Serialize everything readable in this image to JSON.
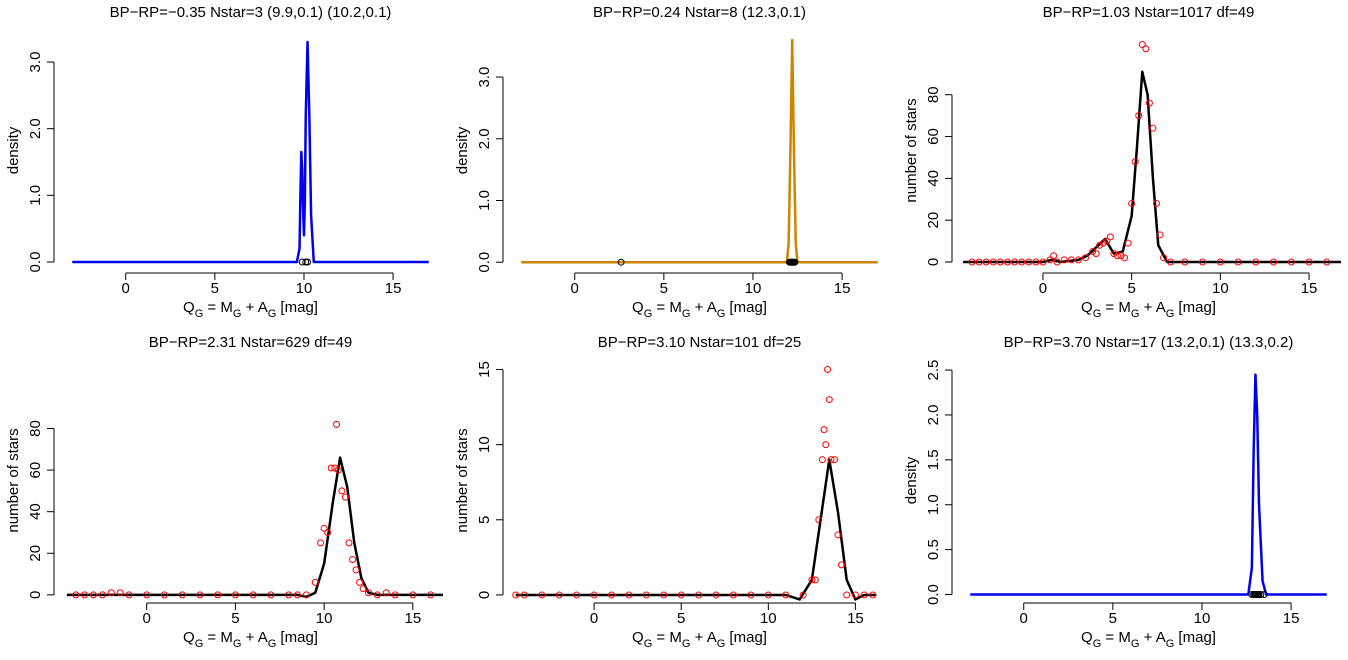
{
  "chart_data": [
    {
      "type": "line",
      "title": "BP−RP=−0.35 Nstar=3 (9.9,0.1) (10.2,0.1)",
      "ylabel": "density",
      "xlabel": {
        "parts": [
          "Q",
          " = M",
          " + A",
          " [mag]"
        ],
        "subs": [
          "G",
          "G",
          "G"
        ]
      },
      "xlim": [
        -3.8,
        17.8
      ],
      "ylim": [
        -0.105,
        3.45
      ],
      "xticks": [
        0,
        5,
        10,
        15
      ],
      "yticks": [
        {
          "value": 0,
          "label": "0.0"
        },
        {
          "value": 1,
          "label": "1.0"
        },
        {
          "value": 2,
          "label": "2.0"
        },
        {
          "value": 3,
          "label": "3.0"
        }
      ],
      "curve": {
        "color": "#0000ee",
        "x": [
          -3,
          9.6,
          9.75,
          9.8,
          9.85,
          9.9,
          9.95,
          10.0,
          10.05,
          10.1,
          10.2,
          10.3,
          10.4,
          10.55,
          17
        ],
        "values": [
          0,
          0,
          0.2,
          1.0,
          1.65,
          1.4,
          0.8,
          0.4,
          0.9,
          2.2,
          3.3,
          2.2,
          0.7,
          0,
          0
        ]
      },
      "points": {
        "color": "#000000",
        "x": [
          9.9,
          10.1,
          10.2
        ],
        "values": [
          0,
          0,
          0
        ]
      }
    },
    {
      "type": "line",
      "title": "BP−RP=0.24 Nstar=8 (12.3,0.1)",
      "ylabel": "density",
      "xlabel": {
        "parts": [
          "Q",
          " = M",
          " + A",
          " [mag]"
        ],
        "subs": [
          "G",
          "G",
          "G"
        ]
      },
      "xlim": [
        -3.8,
        17.8
      ],
      "ylim": [
        -0.11,
        3.73
      ],
      "xticks": [
        0,
        5,
        10,
        15
      ],
      "yticks": [
        {
          "value": 0,
          "label": "0.0"
        },
        {
          "value": 1,
          "label": "1.0"
        },
        {
          "value": 2,
          "label": "2.0"
        },
        {
          "value": 3,
          "label": "3.0"
        }
      ],
      "curve": {
        "color": "#cd8500",
        "x": [
          -3,
          11.9,
          12.0,
          12.1,
          12.2,
          12.3,
          12.4,
          12.5,
          17
        ],
        "values": [
          0,
          0,
          0.3,
          1.8,
          3.6,
          1.8,
          0.3,
          0,
          0
        ]
      },
      "points": {
        "color": "#000000",
        "x": [
          2.6,
          12.05,
          12.1,
          12.15,
          12.2,
          12.25,
          12.3,
          12.35
        ],
        "values": [
          0,
          0,
          0,
          0,
          0,
          0,
          0,
          0
        ]
      }
    },
    {
      "type": "line",
      "title": "BP−RP=1.03 Nstar=1017 df=49",
      "ylabel": "number of stars",
      "xlabel": {
        "parts": [
          "Q",
          " = M",
          " + A",
          " [mag]"
        ],
        "subs": [
          "G",
          "G",
          "G"
        ]
      },
      "xlim": [
        -4.9,
        16.8
      ],
      "ylim": [
        -3.35,
        110
      ],
      "xticks": [
        0,
        5,
        10,
        15
      ],
      "yticks": [
        0,
        20,
        40,
        60,
        80
      ],
      "curve": {
        "color": "#000000",
        "x": [
          -4.5,
          0,
          0.5,
          1,
          2,
          2.5,
          3,
          3.5,
          4,
          4.5,
          5,
          5.3,
          5.6,
          5.9,
          6.2,
          6.5,
          7,
          8,
          16.8
        ],
        "values": [
          0,
          0,
          1,
          0,
          1,
          3,
          7,
          11,
          4,
          5,
          22,
          55,
          91,
          80,
          40,
          8,
          0,
          0,
          0
        ]
      },
      "points": {
        "color": "#ff0000",
        "x": [
          -4,
          -3.6,
          -3.2,
          -2.8,
          -2.4,
          -2,
          -1.6,
          -1.2,
          -0.8,
          -0.4,
          0,
          0.4,
          0.6,
          0.8,
          1.2,
          1.6,
          2,
          2.4,
          2.8,
          3.0,
          3.2,
          3.4,
          3.6,
          3.8,
          4.0,
          4.2,
          4.4,
          4.6,
          4.8,
          5.0,
          5.2,
          5.4,
          5.6,
          5.8,
          6.0,
          6.2,
          6.4,
          6.6,
          6.8,
          7.2,
          8,
          9,
          10,
          11,
          12,
          13,
          14,
          15,
          16
        ],
        "values": [
          0,
          0,
          0,
          0,
          0,
          0,
          0,
          0,
          0,
          0,
          0,
          1,
          3,
          0,
          1,
          1,
          1,
          2,
          5,
          4,
          8,
          9,
          10,
          12,
          4,
          3,
          3,
          2,
          9,
          28,
          48,
          70,
          104,
          102,
          76,
          64,
          28,
          13,
          2,
          0,
          0,
          0,
          0,
          0,
          0,
          0,
          0,
          0,
          0
        ]
      }
    },
    {
      "type": "line",
      "title": "BP−RP=2.31 Nstar=629 df=49",
      "ylabel": "number of stars",
      "xlabel": {
        "parts": [
          "Q",
          " = M",
          " + A",
          " [mag]"
        ],
        "subs": [
          "G",
          "G",
          "G"
        ]
      },
      "xlim": [
        -5,
        16.7
      ],
      "ylim": [
        -2,
        112
      ],
      "xticks": [
        0,
        5,
        10,
        15
      ],
      "yticks": [
        0,
        20,
        40,
        60,
        80
      ],
      "curve": {
        "color": "#000000",
        "x": [
          -4.5,
          -2,
          8.5,
          9.0,
          9.5,
          10.0,
          10.5,
          10.9,
          11.3,
          11.7,
          12.1,
          12.5,
          13,
          16.7
        ],
        "values": [
          0,
          0,
          0,
          -1,
          1,
          15,
          45,
          66,
          52,
          25,
          8,
          1,
          0,
          0
        ]
      },
      "points": {
        "color": "#ff0000",
        "x": [
          -4,
          -3.5,
          -3,
          -2.5,
          -2,
          -1.5,
          -1,
          0,
          1,
          2,
          3,
          4,
          5,
          6,
          7,
          8,
          8.5,
          9,
          9.5,
          9.8,
          10.0,
          10.2,
          10.4,
          10.6,
          10.7,
          10.8,
          11.0,
          11.2,
          11.4,
          11.6,
          11.8,
          12.0,
          12.2,
          12.5,
          13,
          13.5,
          14,
          15,
          16
        ],
        "values": [
          0,
          0,
          0,
          0,
          1,
          1,
          0,
          0,
          0,
          0,
          0,
          0,
          0,
          0,
          0,
          0,
          0,
          0,
          6,
          25,
          32,
          30,
          61,
          61,
          82,
          60,
          50,
          47,
          25,
          17,
          12,
          6,
          3,
          1,
          0,
          1,
          0,
          0,
          0
        ]
      }
    },
    {
      "type": "line",
      "title": "BP−RP=3.10 Nstar=101 df=25",
      "ylabel": "number of stars",
      "xlabel": {
        "parts": [
          "Q",
          " = M",
          " + A",
          " [mag]"
        ],
        "subs": [
          "G",
          "G",
          "G"
        ]
      },
      "xlim": [
        -5,
        17.1
      ],
      "ylim": [
        -0.27,
        15.5
      ],
      "xticks": [
        0,
        5,
        10,
        15
      ],
      "yticks": [
        0,
        5,
        10,
        15
      ],
      "curve": {
        "color": "#000000",
        "x": [
          -4.5,
          10,
          11,
          11.8,
          12.5,
          13,
          13.5,
          14,
          14.5,
          15,
          15.5,
          16.2
        ],
        "values": [
          0,
          0,
          0,
          -0.3,
          1,
          5,
          9,
          5.5,
          1,
          -0.3,
          0,
          0
        ]
      },
      "points": {
        "color": "#ff0000",
        "x": [
          -4.5,
          -4,
          -3,
          -2,
          -1,
          0,
          1,
          2,
          3,
          4,
          5,
          6,
          7,
          8,
          9,
          10,
          11,
          12,
          12.5,
          12.7,
          12.9,
          13.1,
          13.2,
          13.3,
          13.4,
          13.5,
          13.6,
          13.8,
          14.0,
          14.2,
          14.5,
          15,
          15.5,
          16
        ],
        "values": [
          0,
          0,
          0,
          0,
          0,
          0,
          0,
          0,
          0,
          0,
          0,
          0,
          0,
          0,
          0,
          0,
          0,
          0,
          1,
          1,
          5,
          9,
          11,
          10,
          15,
          13,
          9,
          9,
          4,
          2,
          0,
          0,
          0,
          0
        ]
      }
    },
    {
      "type": "line",
      "title": "BP−RP=3.70 Nstar=17 (13.2,0.1) (13.3,0.2)",
      "ylabel": "density",
      "xlabel": {
        "parts": [
          "Q",
          " = M",
          " + A",
          " [mag]"
        ],
        "subs": [
          "G",
          "G",
          "G"
        ]
      },
      "xlim": [
        -3.8,
        17.8
      ],
      "ylim": [
        -0.05,
        2.59
      ],
      "xticks": [
        0,
        5,
        10,
        15
      ],
      "yticks": [
        {
          "value": 0,
          "label": "0.0"
        },
        0.5,
        {
          "value": 1,
          "label": "1.0"
        },
        1.5,
        {
          "value": 2,
          "label": "2.0"
        },
        2.5
      ],
      "curve": {
        "color": "#0000ee",
        "x": [
          -3,
          12.6,
          12.8,
          12.9,
          13.0,
          13.1,
          13.2,
          13.4,
          13.6,
          17
        ],
        "values": [
          0,
          0,
          0.3,
          1.6,
          2.45,
          2.0,
          1.0,
          0.15,
          0,
          0
        ]
      },
      "points": {
        "color": "#000000",
        "x": [
          12.8,
          12.9,
          12.95,
          13.0,
          13.05,
          13.1,
          13.15,
          13.2,
          13.3,
          13.5
        ],
        "values": [
          0,
          0,
          0,
          0,
          0,
          0,
          0,
          0,
          0,
          0
        ]
      }
    }
  ]
}
